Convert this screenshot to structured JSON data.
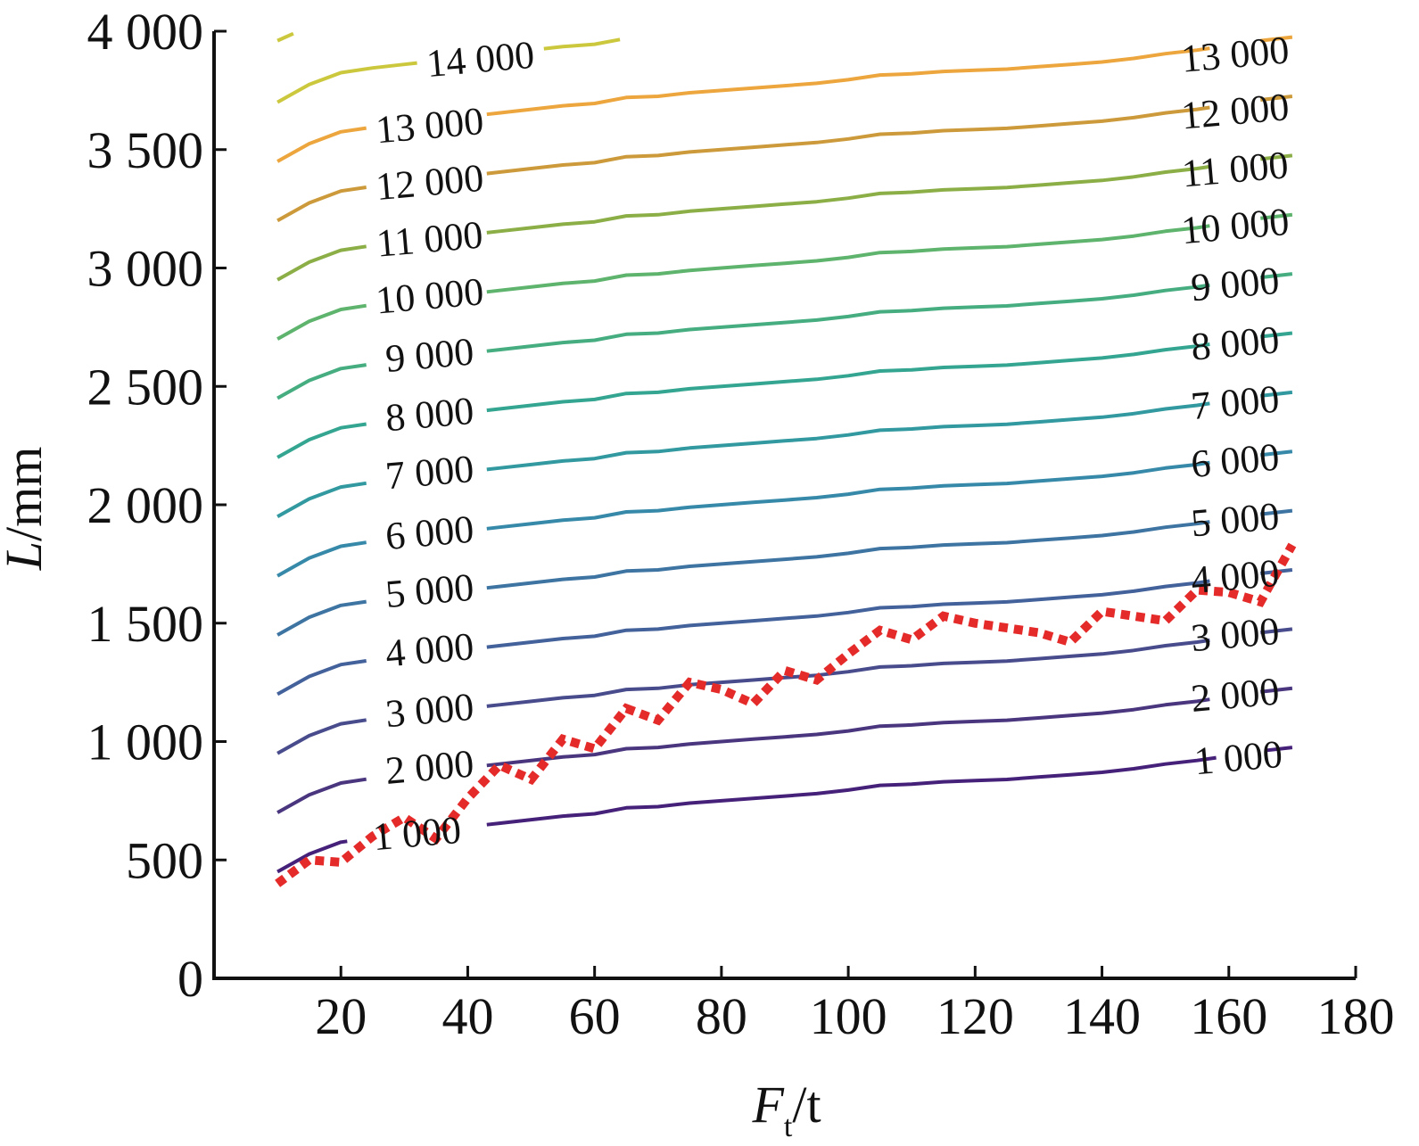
{
  "chart_data": {
    "type": "line",
    "subtype": "contour",
    "title": "",
    "xlabel_main": "F",
    "xlabel_sub": "t",
    "xlabel_unit": "/t",
    "ylabel_italic": "L",
    "ylabel_unit": "/mm",
    "xlim": [
      0,
      180
    ],
    "ylim": [
      0,
      4000
    ],
    "x_ticks": [
      20,
      40,
      60,
      80,
      100,
      120,
      140,
      160,
      180
    ],
    "x_tick_labels": [
      "20",
      "40",
      "60",
      "80",
      "100",
      "120",
      "140",
      "160",
      "180"
    ],
    "y_ticks": [
      0,
      500,
      1000,
      1500,
      2000,
      2500,
      3000,
      3500,
      4000
    ],
    "y_tick_labels": [
      "0",
      "500",
      "1 000",
      "1 500",
      "2 000",
      "2 500",
      "3 000",
      "3 500",
      "4 000"
    ],
    "grid": false,
    "contour_x": [
      10,
      15,
      20,
      25,
      30,
      35,
      40,
      45,
      50,
      55,
      60,
      65,
      70,
      75,
      80,
      85,
      90,
      95,
      100,
      105,
      110,
      115,
      120,
      125,
      130,
      135,
      140,
      145,
      150,
      155,
      160,
      165,
      170
    ],
    "contour_shape": [
      0,
      75,
      125,
      145,
      160,
      175,
      190,
      205,
      220,
      235,
      245,
      270,
      275,
      290,
      300,
      310,
      320,
      330,
      345,
      365,
      370,
      380,
      385,
      390,
      400,
      410,
      420,
      435,
      455,
      470,
      490,
      510,
      525
    ],
    "contours": [
      {
        "level": 1000,
        "label": "1 000",
        "base": 450,
        "color": "#46217a",
        "gaps": [
          [
            21,
            43
          ],
          [
            158,
            166
          ]
        ],
        "label_positions": [
          {
            "x": 32,
            "y": 610
          },
          {
            "x": 161.5,
            "y": 930
          }
        ]
      },
      {
        "level": 2000,
        "label": "2 000",
        "base": 700,
        "color": "#4a367f",
        "gaps": [
          [
            24,
            43
          ],
          [
            157,
            165
          ]
        ],
        "label_positions": [
          {
            "x": 34,
            "y": 890
          },
          {
            "x": 161,
            "y": 1195
          }
        ]
      },
      {
        "level": 3000,
        "label": "3 000",
        "base": 950,
        "color": "#484c8c",
        "gaps": [
          [
            24,
            43
          ],
          [
            157,
            165
          ]
        ],
        "label_positions": [
          {
            "x": 34,
            "y": 1130
          },
          {
            "x": 161,
            "y": 1450
          }
        ]
      },
      {
        "level": 4000,
        "label": "4 000",
        "base": 1200,
        "color": "#43619a",
        "gaps": [
          [
            24,
            43
          ],
          [
            157,
            165
          ]
        ],
        "label_positions": [
          {
            "x": 34,
            "y": 1385
          },
          {
            "x": 161,
            "y": 1695
          }
        ]
      },
      {
        "level": 5000,
        "label": "5 000",
        "base": 1450,
        "color": "#3d74a2",
        "gaps": [
          [
            24,
            43
          ],
          [
            157,
            165
          ]
        ],
        "label_positions": [
          {
            "x": 34,
            "y": 1635
          },
          {
            "x": 161,
            "y": 1935
          }
        ]
      },
      {
        "level": 6000,
        "label": "6 000",
        "base": 1700,
        "color": "#3689a8",
        "gaps": [
          [
            24,
            43
          ],
          [
            157,
            165
          ]
        ],
        "label_positions": [
          {
            "x": 34,
            "y": 1880
          },
          {
            "x": 161,
            "y": 2185
          }
        ]
      },
      {
        "level": 7000,
        "label": "7 000",
        "base": 1950,
        "color": "#31999f",
        "gaps": [
          [
            24,
            43
          ],
          [
            157,
            165
          ]
        ],
        "label_positions": [
          {
            "x": 34,
            "y": 2135
          },
          {
            "x": 161,
            "y": 2430
          }
        ]
      },
      {
        "level": 8000,
        "label": "8 000",
        "base": 2200,
        "color": "#34a591",
        "gaps": [
          [
            24,
            43
          ],
          [
            157,
            165
          ]
        ],
        "label_positions": [
          {
            "x": 34,
            "y": 2380
          },
          {
            "x": 161,
            "y": 2680
          }
        ]
      },
      {
        "level": 9000,
        "label": "9 000",
        "base": 2450,
        "color": "#45ad80",
        "gaps": [
          [
            24,
            43
          ],
          [
            157,
            165
          ]
        ],
        "label_positions": [
          {
            "x": 34,
            "y": 2630
          },
          {
            "x": 161,
            "y": 2930
          }
        ]
      },
      {
        "level": 10000,
        "label": "10 000",
        "base": 2700,
        "color": "#5eb36d",
        "gaps": [
          [
            24,
            43
          ],
          [
            157,
            165
          ]
        ],
        "label_positions": [
          {
            "x": 34,
            "y": 2880
          },
          {
            "x": 161,
            "y": 3175
          }
        ]
      },
      {
        "level": 11000,
        "label": "11 000",
        "base": 2950,
        "color": "#8cae46",
        "gaps": [
          [
            24,
            43
          ],
          [
            157,
            165
          ]
        ],
        "label_positions": [
          {
            "x": 34,
            "y": 3120
          },
          {
            "x": 161,
            "y": 3415
          }
        ]
      },
      {
        "level": 12000,
        "label": "12 000",
        "base": 3200,
        "color": "#cc9a3a",
        "gaps": [
          [
            24,
            43
          ],
          [
            157,
            165
          ]
        ],
        "label_positions": [
          {
            "x": 34,
            "y": 3360
          },
          {
            "x": 161,
            "y": 3660
          }
        ]
      },
      {
        "level": 13000,
        "label": "13 000",
        "base": 3450,
        "color": "#eca63d",
        "gaps": [
          [
            24,
            43
          ],
          [
            157,
            165
          ]
        ],
        "label_positions": [
          {
            "x": 34,
            "y": 3600
          },
          {
            "x": 161,
            "y": 3900
          }
        ]
      },
      {
        "level": 14000,
        "label": "14 000",
        "base": 3700,
        "color": "#ccc83e",
        "gaps": [
          [
            32,
            52
          ]
        ],
        "label_positions": [
          {
            "x": 42,
            "y": 3880
          }
        ]
      }
    ],
    "contour_14000_extra_segment": [
      [
        10,
        3960
      ],
      [
        12.5,
        3990
      ]
    ],
    "dashed_series": {
      "color": "#e42b2a",
      "x": [
        10,
        15,
        20,
        25,
        30,
        35,
        40,
        45,
        50,
        55,
        60,
        65,
        70,
        75,
        80,
        85,
        90,
        95,
        100,
        105,
        110,
        115,
        120,
        125,
        130,
        135,
        140,
        145,
        150,
        155,
        160,
        165,
        170
      ],
      "y": [
        400,
        500,
        490,
        600,
        680,
        590,
        760,
        900,
        840,
        1010,
        970,
        1140,
        1090,
        1250,
        1220,
        1160,
        1300,
        1260,
        1370,
        1470,
        1430,
        1530,
        1500,
        1480,
        1460,
        1420,
        1550,
        1530,
        1510,
        1640,
        1630,
        1590,
        1830
      ]
    }
  }
}
